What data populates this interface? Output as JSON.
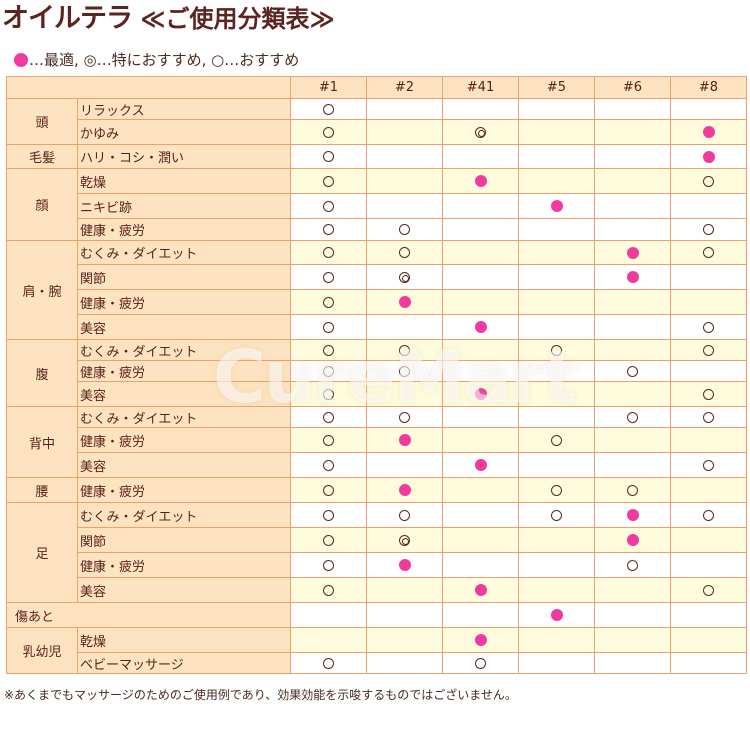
{
  "title": {
    "main": "オイルテラ",
    "sub": "≪ご使用分類表≫"
  },
  "legend": {
    "text": "…最適, ◎…特におすすめ, ○…おすすめ",
    "best_color": "#f03a9e"
  },
  "columns": [
    "#1",
    "#2",
    "#41",
    "#5",
    "#6",
    "#8"
  ],
  "marks_legend": {
    "best": "● 最適",
    "srec": "◎ 特におすすめ",
    "rec": "○ おすすめ"
  },
  "groups": [
    {
      "category": "頭",
      "rows": [
        {
          "label": "リラックス",
          "bg": "w",
          "values": [
            "rec",
            "",
            "",
            "",
            "",
            ""
          ]
        },
        {
          "label": "かゆみ",
          "bg": "y",
          "values": [
            "rec",
            "",
            "srec",
            "",
            "",
            "best"
          ]
        }
      ]
    },
    {
      "category": "毛髪",
      "rows": [
        {
          "label": "ハリ・コシ・潤い",
          "bg": "w",
          "values": [
            "rec",
            "",
            "",
            "",
            "",
            "best"
          ]
        }
      ]
    },
    {
      "category": "顔",
      "rows": [
        {
          "label": "乾燥",
          "bg": "y",
          "values": [
            "rec",
            "",
            "best",
            "",
            "",
            "rec"
          ]
        },
        {
          "label": "ニキビ跡",
          "bg": "w",
          "values": [
            "rec",
            "",
            "",
            "best",
            "",
            ""
          ]
        },
        {
          "label": "健康・疲労",
          "bg": "w",
          "values": [
            "rec",
            "rec",
            "",
            "",
            "",
            "rec"
          ]
        }
      ]
    },
    {
      "category": "肩・腕",
      "rows": [
        {
          "label": "むくみ・ダイエット",
          "bg": "y",
          "values": [
            "rec",
            "rec",
            "",
            "",
            "best",
            "rec"
          ]
        },
        {
          "label": "関節",
          "bg": "w",
          "values": [
            "rec",
            "srec",
            "",
            "",
            "best",
            ""
          ]
        },
        {
          "label": "健康・疲労",
          "bg": "y",
          "values": [
            "rec",
            "best",
            "",
            "",
            "",
            ""
          ]
        },
        {
          "label": "美容",
          "bg": "w",
          "values": [
            "rec",
            "",
            "best",
            "",
            "",
            "rec"
          ]
        }
      ]
    },
    {
      "category": "腹",
      "rows": [
        {
          "label": "むくみ・ダイエット",
          "bg": "y",
          "values": [
            "rec",
            "rec",
            "",
            "rec",
            "",
            "rec"
          ]
        },
        {
          "label": "健康・疲労",
          "bg": "w",
          "values": [
            "rec",
            "rec",
            "",
            "",
            "rec",
            ""
          ]
        },
        {
          "label": "美容",
          "bg": "y",
          "values": [
            "rec",
            "",
            "best",
            "",
            "",
            "rec"
          ]
        }
      ]
    },
    {
      "category": "背中",
      "rows": [
        {
          "label": "むくみ・ダイエット",
          "bg": "w",
          "values": [
            "rec",
            "rec",
            "",
            "",
            "rec",
            "rec"
          ]
        },
        {
          "label": "健康・疲労",
          "bg": "y",
          "values": [
            "rec",
            "best",
            "",
            "rec",
            "",
            ""
          ]
        },
        {
          "label": "美容",
          "bg": "w",
          "values": [
            "rec",
            "",
            "best",
            "",
            "",
            "rec"
          ]
        }
      ]
    },
    {
      "category": "腰",
      "rows": [
        {
          "label": "健康・疲労",
          "bg": "y",
          "values": [
            "rec",
            "best",
            "",
            "rec",
            "rec",
            ""
          ]
        }
      ]
    },
    {
      "category": "足",
      "rows": [
        {
          "label": "むくみ・ダイエット",
          "bg": "w",
          "values": [
            "rec",
            "rec",
            "",
            "rec",
            "best",
            "rec"
          ]
        },
        {
          "label": "関節",
          "bg": "y",
          "values": [
            "rec",
            "srec",
            "",
            "",
            "best",
            ""
          ]
        },
        {
          "label": "健康・疲労",
          "bg": "w",
          "values": [
            "rec",
            "best",
            "",
            "",
            "rec",
            ""
          ]
        },
        {
          "label": "美容",
          "bg": "y",
          "values": [
            "rec",
            "",
            "best",
            "",
            "",
            "rec"
          ]
        }
      ]
    },
    {
      "category": "傷あと",
      "span": true,
      "rows": [
        {
          "label": "",
          "bg": "w",
          "values": [
            "",
            "",
            "",
            "best",
            "",
            ""
          ]
        }
      ]
    },
    {
      "category": "乳幼児",
      "rows": [
        {
          "label": "乾燥",
          "bg": "y",
          "values": [
            "",
            "",
            "best",
            "",
            "",
            ""
          ]
        },
        {
          "label": "ベビーマッサージ",
          "bg": "w",
          "values": [
            "rec",
            "",
            "rec",
            "",
            "",
            ""
          ]
        }
      ]
    }
  ],
  "note": "※あくまでもマッサージのためのご使用例であり、効果効能を示唆するものではございません。",
  "watermark": "CureMart"
}
